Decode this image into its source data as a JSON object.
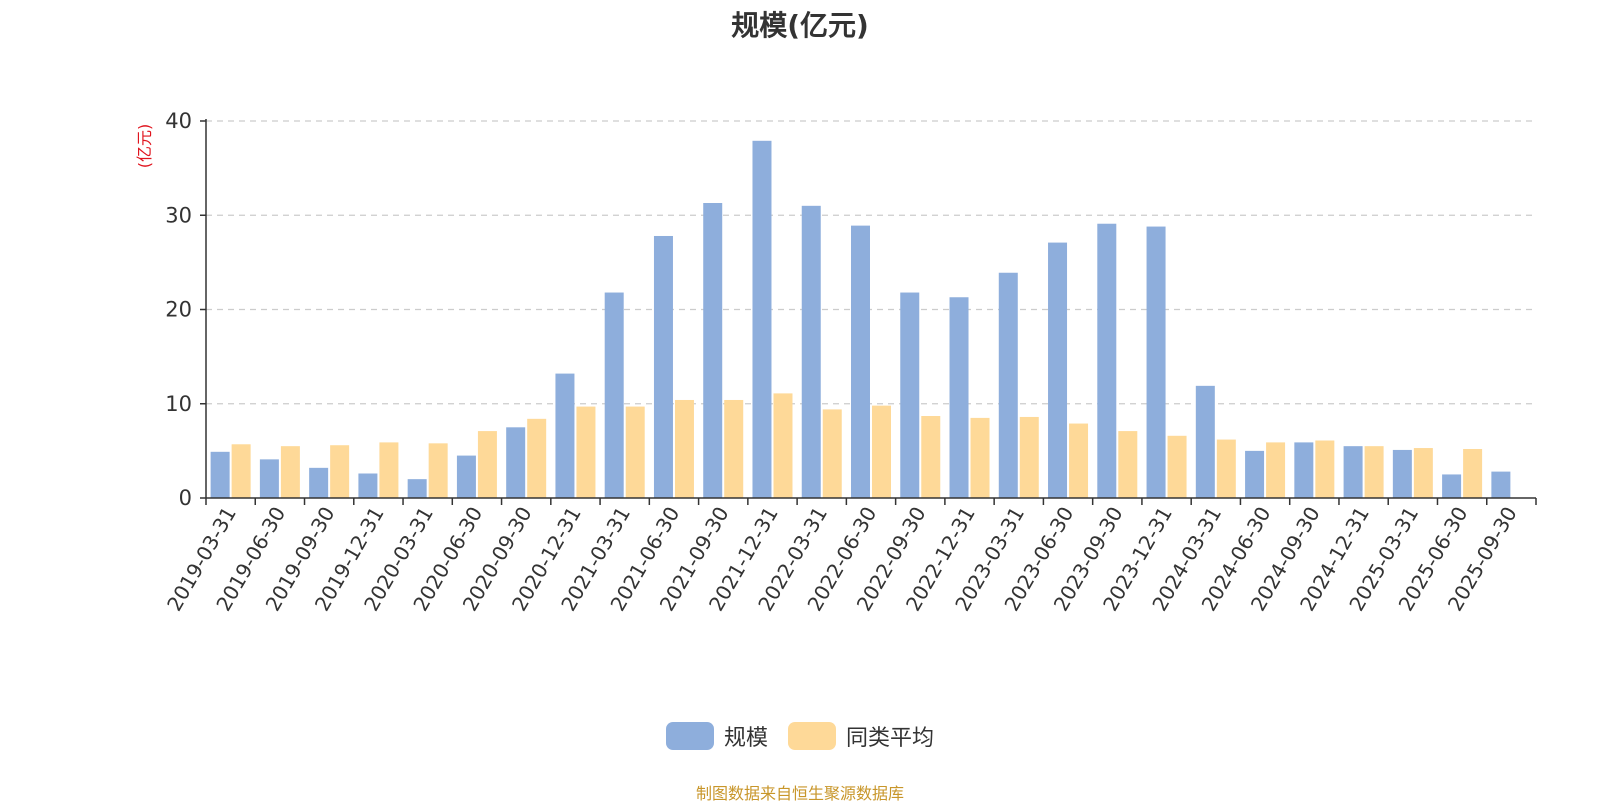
{
  "chart_data": {
    "type": "bar",
    "title": "规模(亿元)",
    "ylabel": "(亿元)",
    "xlabel": "",
    "ylim": [
      0,
      40
    ],
    "yticks": [
      0,
      10,
      20,
      30,
      40
    ],
    "grid": true,
    "legend_position": "bottom",
    "categories": [
      "2019-03-31",
      "2019-06-30",
      "2019-09-30",
      "2019-12-31",
      "2020-03-31",
      "2020-06-30",
      "2020-09-30",
      "2020-12-31",
      "2021-03-31",
      "2021-06-30",
      "2021-09-30",
      "2021-12-31",
      "2022-03-31",
      "2022-06-30",
      "2022-09-30",
      "2022-12-31",
      "2023-03-31",
      "2023-06-30",
      "2023-09-30",
      "2023-12-31",
      "2024-03-31",
      "2024-06-30",
      "2024-09-30",
      "2024-12-31",
      "2025-03-31",
      "2025-06-30",
      "2025-09-30"
    ],
    "series": [
      {
        "name": "规模",
        "color": "#8eaedc",
        "values": [
          4.9,
          4.1,
          3.2,
          2.6,
          2.0,
          4.5,
          7.5,
          13.2,
          21.8,
          27.8,
          31.3,
          37.9,
          31.0,
          28.9,
          21.8,
          21.3,
          23.9,
          27.1,
          29.1,
          28.8,
          11.9,
          5.0,
          5.9,
          5.5,
          5.1,
          2.5,
          2.8
        ]
      },
      {
        "name": "同类平均",
        "color": "#fed998",
        "values": [
          5.7,
          5.5,
          5.6,
          5.9,
          5.8,
          7.1,
          8.4,
          9.7,
          9.7,
          10.4,
          10.4,
          11.1,
          9.4,
          9.8,
          8.7,
          8.5,
          8.6,
          7.9,
          7.1,
          6.6,
          6.2,
          5.9,
          6.1,
          5.5,
          5.3,
          5.2,
          null
        ]
      }
    ]
  },
  "footer": "制图数据来自恒生聚源数据库",
  "colors": {
    "title": "#333333",
    "ylabel": "#e0141e",
    "axis": "#333333",
    "grid": "#cccccc",
    "footer": "#c8962a"
  }
}
